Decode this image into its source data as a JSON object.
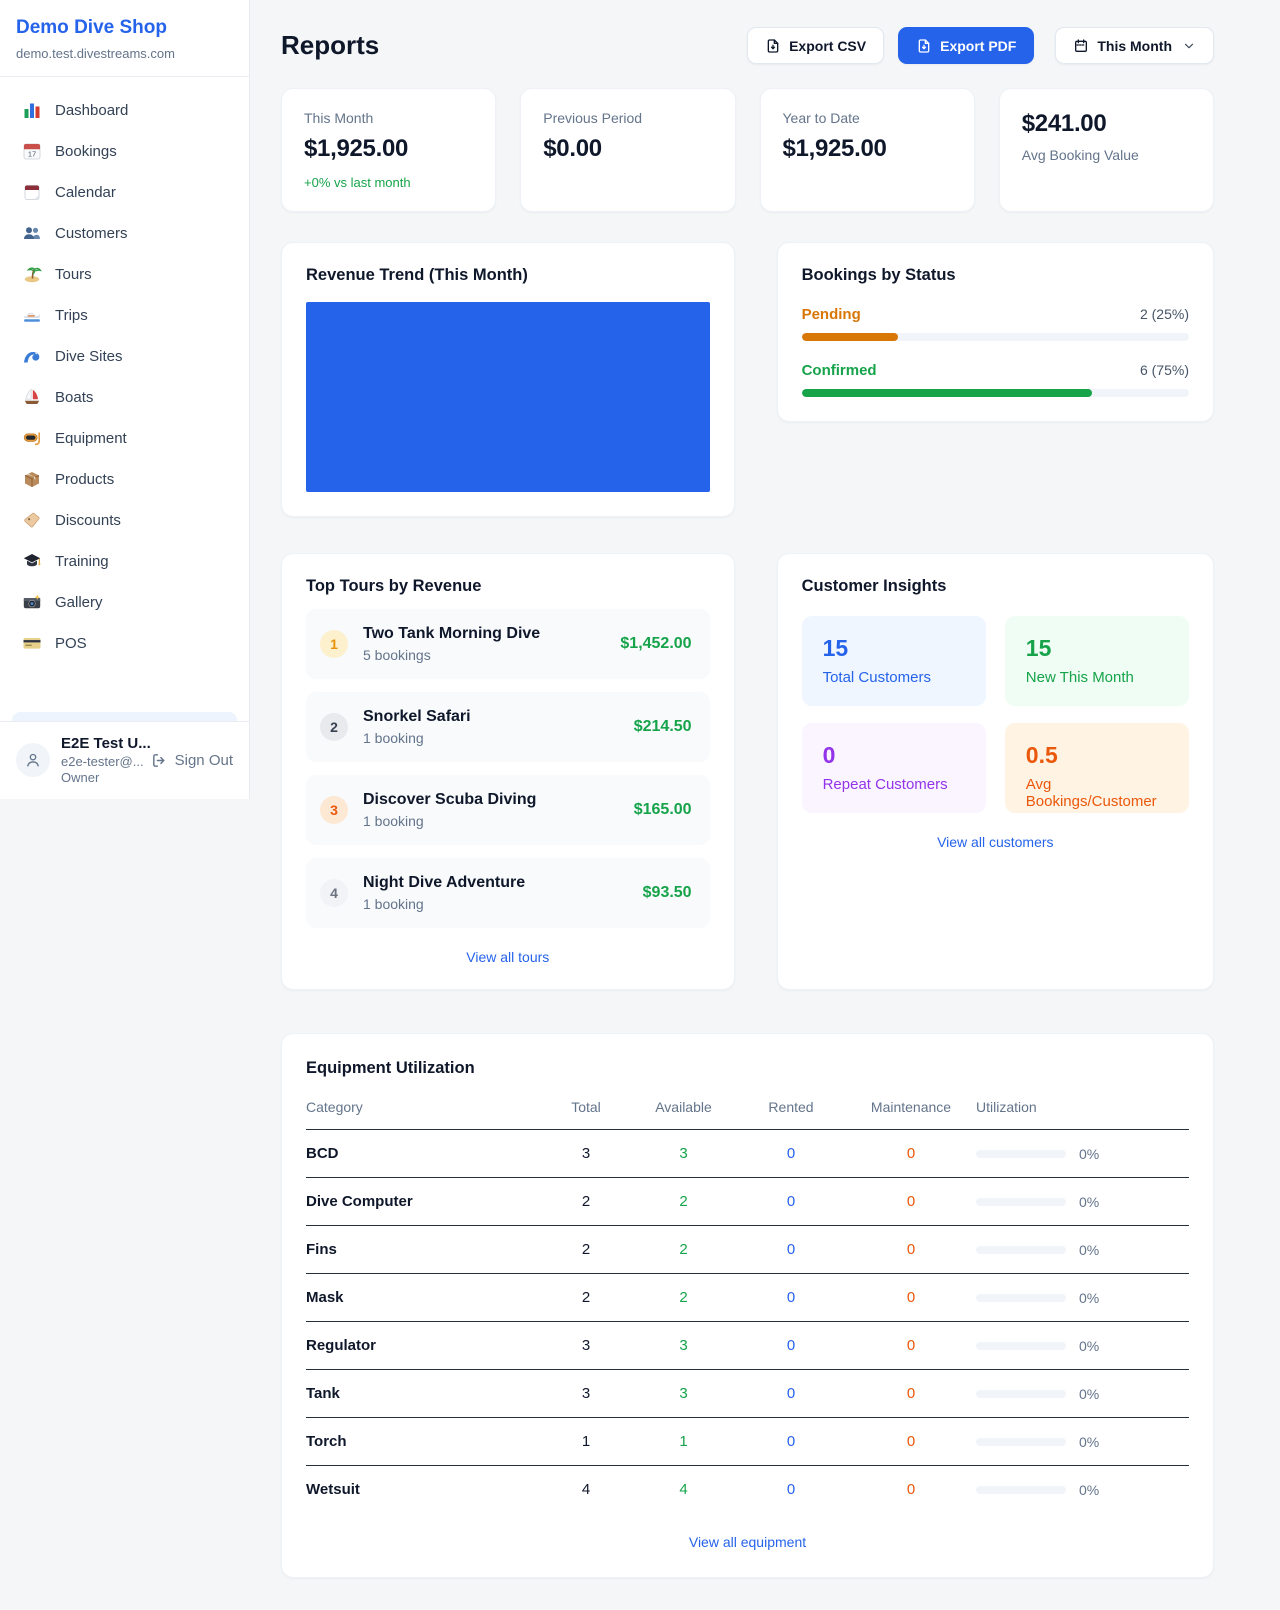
{
  "colors": {
    "accent_blue": "#2563eb",
    "green": "#16a34a",
    "pending_orange": "#d97706",
    "maintenance_orange": "#ea580c",
    "purple": "#9333ea"
  },
  "sidebar": {
    "brand": "Demo Dive Shop",
    "domain": "demo.test.divestreams.com",
    "nav": [
      {
        "icon": "bar-chart",
        "label": "Dashboard"
      },
      {
        "icon": "calendar-date",
        "label": "Bookings"
      },
      {
        "icon": "tear-off-calendar",
        "label": "Calendar"
      },
      {
        "icon": "people",
        "label": "Customers"
      },
      {
        "icon": "desert-island",
        "label": "Tours"
      },
      {
        "icon": "speedboat",
        "label": "Trips"
      },
      {
        "icon": "water-wave",
        "label": "Dive Sites"
      },
      {
        "icon": "sailboat",
        "label": "Boats"
      },
      {
        "icon": "diving-mask",
        "label": "Equipment"
      },
      {
        "icon": "package",
        "label": "Products"
      },
      {
        "icon": "label-tag",
        "label": "Discounts"
      },
      {
        "icon": "graduation-cap",
        "label": "Training"
      },
      {
        "icon": "camera",
        "label": "Gallery"
      },
      {
        "icon": "credit-card",
        "label": "POS"
      }
    ],
    "user": {
      "name": "E2E Test U...",
      "email": "e2e-tester@...",
      "role": "Owner",
      "sign_out": "Sign Out"
    }
  },
  "header": {
    "title": "Reports",
    "export_csv": "Export CSV",
    "export_pdf": "Export PDF",
    "period": "This Month"
  },
  "stats": [
    {
      "label": "This Month",
      "value": "$1,925.00",
      "delta": "+0% vs last month"
    },
    {
      "label": "Previous Period",
      "value": "$0.00"
    },
    {
      "label": "Year to Date",
      "value": "$1,925.00"
    },
    {
      "label": "Avg Booking Value",
      "value": "$241.00"
    }
  ],
  "revenue_trend": {
    "title": "Revenue Trend (This Month)",
    "fill_color": "#2563eb"
  },
  "bookings_by_status": {
    "title": "Bookings by Status",
    "items": [
      {
        "label": "Pending",
        "value": "2 (25%)",
        "pct": 25,
        "color": "#d97706"
      },
      {
        "label": "Confirmed",
        "value": "6 (75%)",
        "pct": 75,
        "color": "#16a34a"
      }
    ]
  },
  "top_tours": {
    "title": "Top Tours by Revenue",
    "items": [
      {
        "rank": "1",
        "name": "Two Tank Morning Dive",
        "bookings": "5 bookings",
        "amount": "$1,452.00"
      },
      {
        "rank": "2",
        "name": "Snorkel Safari",
        "bookings": "1 booking",
        "amount": "$214.50"
      },
      {
        "rank": "3",
        "name": "Discover Scuba Diving",
        "bookings": "1 booking",
        "amount": "$165.00"
      },
      {
        "rank": "4",
        "name": "Night Dive Adventure",
        "bookings": "1 booking",
        "amount": "$93.50"
      }
    ],
    "link": "View all tours"
  },
  "customer_insights": {
    "title": "Customer Insights",
    "tiles": [
      {
        "value": "15",
        "label": "Total Customers",
        "theme": "blue"
      },
      {
        "value": "15",
        "label": "New This Month",
        "theme": "green"
      },
      {
        "value": "0",
        "label": "Repeat Customers",
        "theme": "purple"
      },
      {
        "value": "0.5",
        "label": "Avg Bookings/Customer",
        "theme": "orange"
      }
    ],
    "link": "View all customers"
  },
  "equipment": {
    "title": "Equipment Utilization",
    "columns": [
      "Category",
      "Total",
      "Available",
      "Rented",
      "Maintenance",
      "Utilization"
    ],
    "rows": [
      {
        "category": "BCD",
        "total": "3",
        "available": "3",
        "rented": "0",
        "maintenance": "0",
        "utilization": "0%",
        "util_pct": 0
      },
      {
        "category": "Dive Computer",
        "total": "2",
        "available": "2",
        "rented": "0",
        "maintenance": "0",
        "utilization": "0%",
        "util_pct": 0
      },
      {
        "category": "Fins",
        "total": "2",
        "available": "2",
        "rented": "0",
        "maintenance": "0",
        "utilization": "0%",
        "util_pct": 0
      },
      {
        "category": "Mask",
        "total": "2",
        "available": "2",
        "rented": "0",
        "maintenance": "0",
        "utilization": "0%",
        "util_pct": 0
      },
      {
        "category": "Regulator",
        "total": "3",
        "available": "3",
        "rented": "0",
        "maintenance": "0",
        "utilization": "0%",
        "util_pct": 0
      },
      {
        "category": "Tank",
        "total": "3",
        "available": "3",
        "rented": "0",
        "maintenance": "0",
        "utilization": "0%",
        "util_pct": 0
      },
      {
        "category": "Torch",
        "total": "1",
        "available": "1",
        "rented": "0",
        "maintenance": "0",
        "utilization": "0%",
        "util_pct": 0
      },
      {
        "category": "Wetsuit",
        "total": "4",
        "available": "4",
        "rented": "0",
        "maintenance": "0",
        "utilization": "0%",
        "util_pct": 0
      }
    ],
    "link": "View all equipment"
  }
}
